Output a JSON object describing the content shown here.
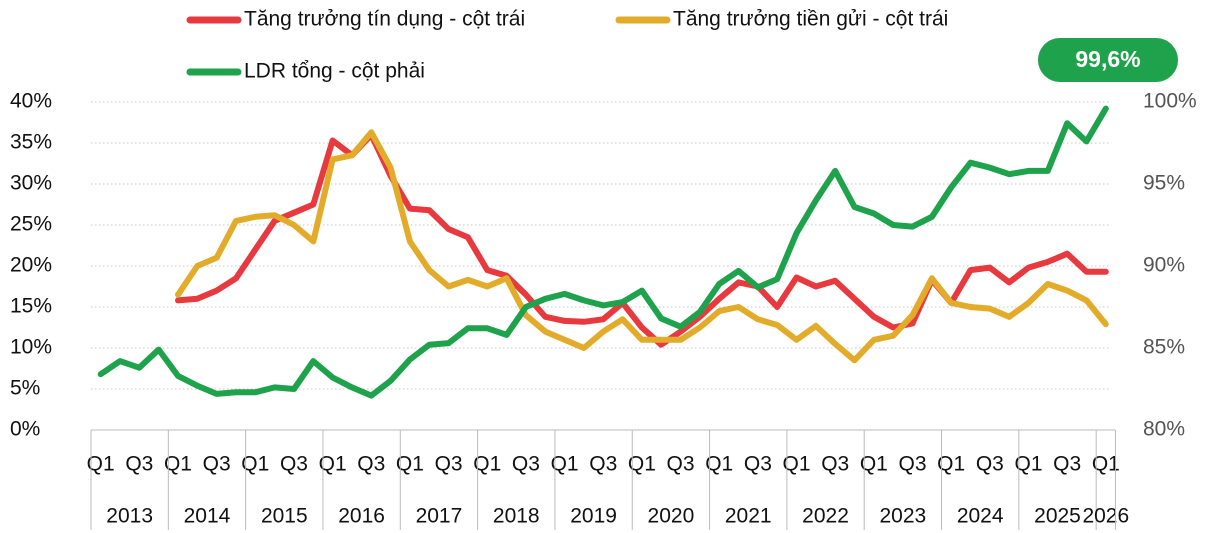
{
  "chart_data": {
    "type": "line",
    "categories": [
      "Q1",
      null,
      "Q3",
      null,
      "Q1",
      null,
      "Q3",
      null,
      "Q1",
      null,
      "Q3",
      null,
      "Q1",
      null,
      "Q3",
      null,
      "Q1",
      null,
      "Q3",
      null,
      "Q1",
      null,
      "Q3",
      null,
      "Q1",
      null,
      "Q3",
      null,
      "Q1",
      null,
      "Q3",
      null,
      "Q1",
      null,
      "Q3",
      null,
      "Q1",
      null,
      "Q3",
      null,
      "Q1",
      null,
      "Q3",
      null,
      "Q1",
      null,
      "Q3",
      null,
      "Q1",
      null,
      "Q3",
      null,
      "Q1"
    ],
    "years": [
      "2013",
      "2014",
      "2015",
      "2016",
      "2017",
      "2018",
      "2019",
      "2020",
      "2021",
      "2022",
      "2023",
      "2024",
      "2025",
      "2026"
    ],
    "series": [
      {
        "name": "Tăng trưởng tín dụng - cột trái",
        "color": "#e8393f",
        "values": [
          null,
          null,
          null,
          null,
          15.8,
          16,
          17,
          18.5,
          22,
          25.5,
          26.5,
          27.5,
          35.3,
          33.5,
          36,
          31,
          27,
          26.8,
          24.5,
          23.5,
          19.5,
          18.8,
          16.5,
          13.8,
          13.3,
          13.2,
          13.5,
          15.5,
          12.5,
          10.4,
          12,
          13.8,
          16,
          18,
          17.5,
          15,
          18.6,
          17.5,
          18.2,
          16,
          13.8,
          12.5,
          13,
          18.3,
          15.5,
          19.5,
          19.8,
          18,
          19.8,
          20.5,
          21.5,
          19.3,
          19.3
        ]
      },
      {
        "name": "Tăng trưởng tiền gửi - cột trái",
        "color": "#e2ac2a",
        "values": [
          null,
          null,
          null,
          null,
          16.5,
          20,
          21,
          25.5,
          26,
          26.2,
          25,
          23,
          33,
          33.5,
          36.3,
          32,
          23,
          19.5,
          17.5,
          18.3,
          17.5,
          18.5,
          14,
          12,
          11,
          10,
          12,
          13.5,
          11,
          11,
          11,
          12.5,
          14.5,
          15,
          13.5,
          12.8,
          11,
          12.7,
          10.5,
          8.5,
          11,
          11.5,
          14,
          18.5,
          15.5,
          15,
          14.8,
          13.8,
          15.5,
          17.8,
          17,
          15.8,
          12.9
        ]
      },
      {
        "name": "LDR tổng - cột phải",
        "color": "#1ea24b",
        "axis": "y2",
        "values": [
          83.4,
          84.2,
          83.8,
          84.9,
          83.3,
          82.7,
          82.2,
          82.3,
          82.3,
          82.6,
          82.5,
          84.2,
          83.2,
          82.6,
          82.1,
          83,
          84.3,
          85.2,
          85.3,
          86.2,
          86.2,
          85.8,
          87.5,
          88,
          88.3,
          87.9,
          87.6,
          87.8,
          88.5,
          86.8,
          86.3,
          87.2,
          88.9,
          89.7,
          88.7,
          89.2,
          92,
          94,
          95.8,
          93.6,
          93.2,
          92.5,
          92.4,
          93,
          94.8,
          96.3,
          96,
          95.6,
          95.8,
          95.8,
          98.7,
          97.6,
          99.6
        ],
        "value_labels": [
          null,
          null,
          null,
          null,
          null,
          null,
          null,
          null,
          null,
          null,
          null,
          null,
          null,
          null,
          null,
          null,
          null,
          null,
          null,
          null,
          null,
          null,
          null,
          null,
          null,
          null,
          null,
          null,
          null,
          null,
          null,
          null,
          null,
          null,
          null,
          null,
          null,
          null,
          null,
          null,
          null,
          null,
          null,
          null,
          null,
          null,
          null,
          null,
          null,
          null,
          null,
          null,
          "99,6%"
        ]
      }
    ],
    "ylim": [
      0,
      40
    ],
    "yticks": [
      {
        "value": 0,
        "label": "0%"
      },
      {
        "value": 5,
        "label": "5%"
      },
      {
        "value": 10,
        "label": "10%"
      },
      {
        "value": 15,
        "label": "15%"
      },
      {
        "value": 20,
        "label": "20%"
      },
      {
        "value": 25,
        "label": "25%"
      },
      {
        "value": 30,
        "label": "30%"
      },
      {
        "value": 35,
        "label": "35%"
      },
      {
        "value": 40,
        "label": "40%"
      }
    ],
    "y2lim": [
      80,
      100
    ],
    "y2ticks": [
      {
        "value": 80,
        "label": "80%"
      },
      {
        "value": 85,
        "label": "85%"
      },
      {
        "value": 90,
        "label": "90%"
      },
      {
        "value": 95,
        "label": "95%"
      },
      {
        "value": 100,
        "label": "100%"
      }
    ],
    "grid": true
  }
}
